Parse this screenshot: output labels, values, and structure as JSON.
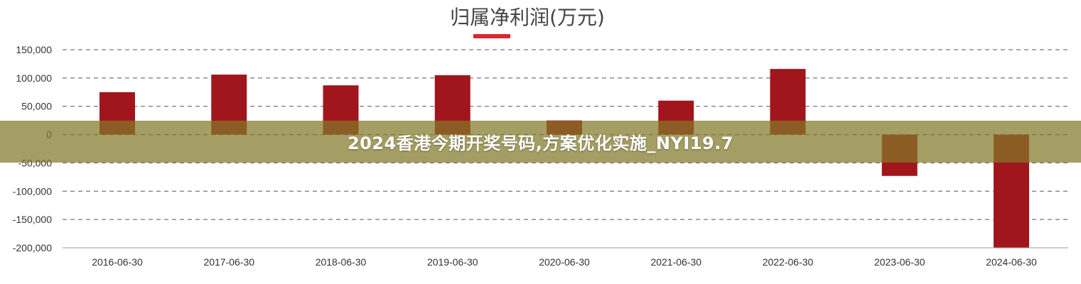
{
  "colors": {
    "bar": "#A0161C",
    "legend": "#D9282F",
    "grid": "#555555",
    "overlay": "#827828"
  },
  "chart_data": {
    "type": "bar",
    "title": "归属净利润(万元)",
    "categories": [
      "2016-06-30",
      "2017-06-30",
      "2018-06-30",
      "2019-06-30",
      "2020-06-30",
      "2021-06-30",
      "2022-06-30",
      "2023-06-30",
      "2024-06-30"
    ],
    "values": [
      75000,
      106000,
      87000,
      105000,
      25000,
      60000,
      116000,
      -73000,
      -200000
    ],
    "yticks": [
      150000,
      100000,
      50000,
      0,
      -50000,
      -100000,
      -150000,
      -200000
    ],
    "ytick_labels": [
      "150,000",
      "100,000",
      "50,000",
      "0",
      "-50,000",
      "-100,000",
      "-150,000",
      "-200,000"
    ],
    "ylim": [
      -200000,
      150000
    ],
    "grid": true,
    "legend_position": "top-center"
  },
  "overlay": {
    "text": "2024香港今期开奖号码,方案优化实施_NYI19.7"
  }
}
